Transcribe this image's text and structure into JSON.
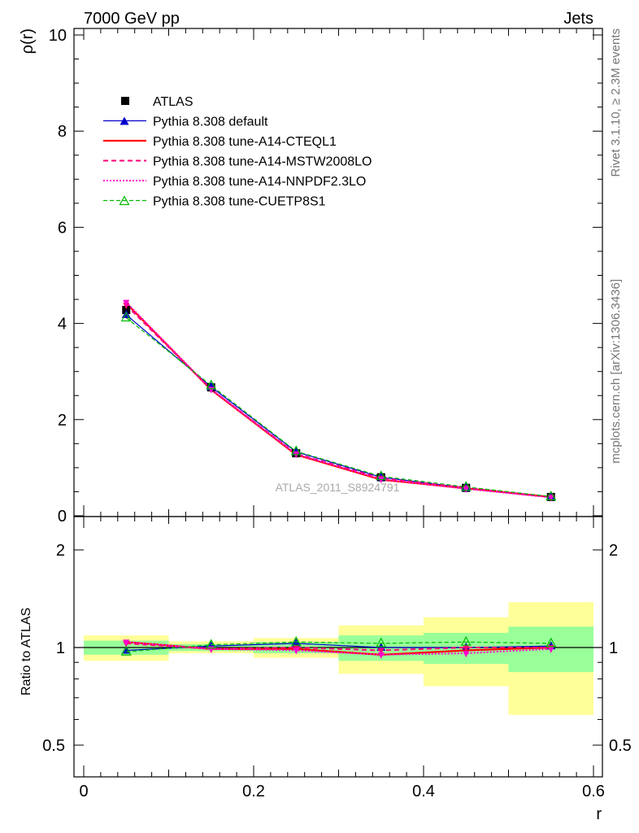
{
  "header": {
    "left": "7000 GeV pp",
    "right": "Jets"
  },
  "side_labels": {
    "rivet": "Rivet 3.1.10, ≥ 2.3M events",
    "mcplots": "mcplots.cern.ch [arXiv:1306.3436]"
  },
  "watermark": "ATLAS_2011_S8924791",
  "chart_data": [
    {
      "type": "line",
      "ylabel": "ρ(r)",
      "xlabel": "r",
      "xlim": [
        0,
        0.6
      ],
      "ylim": [
        0,
        10
      ],
      "yticks": [
        "0",
        "2",
        "4",
        "6",
        "8",
        "10"
      ],
      "grid": false,
      "legend_position": "top-left",
      "x": [
        0.05,
        0.15,
        0.25,
        0.35,
        0.45,
        0.55
      ],
      "series": [
        {
          "name": "ATLAS",
          "values": [
            4.28,
            2.67,
            1.3,
            0.8,
            0.58,
            0.39
          ],
          "color": "#000000"
        },
        {
          "name": "Pythia 8.308 default",
          "values": [
            4.18,
            2.68,
            1.33,
            0.8,
            0.58,
            0.39
          ],
          "color": "#0000cc"
        },
        {
          "name": "Pythia 8.308 tune-A14-CTEQL1",
          "values": [
            4.42,
            2.62,
            1.27,
            0.75,
            0.57,
            0.39
          ],
          "color": "#ff0000"
        },
        {
          "name": "Pythia 8.308 tune-A14-MSTW2008LO",
          "values": [
            4.38,
            2.63,
            1.29,
            0.78,
            0.58,
            0.39
          ],
          "color": "#ff0077"
        },
        {
          "name": "Pythia 8.308 tune-A14-NNPDF2.3LO",
          "values": [
            4.44,
            2.63,
            1.28,
            0.76,
            0.56,
            0.38
          ],
          "color": "#ff00cc"
        },
        {
          "name": "Pythia 8.308 tune-CUETP8S1",
          "values": [
            4.12,
            2.71,
            1.34,
            0.82,
            0.6,
            0.4
          ],
          "color": "#00bb00"
        }
      ]
    },
    {
      "type": "line",
      "ylabel": "Ratio to ATLAS",
      "xlabel": "r",
      "xlim": [
        0,
        0.6
      ],
      "ylim": [
        0.4,
        2.3
      ],
      "yticks": [
        "0.5",
        "1",
        "2"
      ],
      "xticks": [
        "0",
        "0.2",
        "0.4",
        "0.6"
      ],
      "grid": false,
      "bins": [
        [
          0.0,
          0.1
        ],
        [
          0.1,
          0.2
        ],
        [
          0.2,
          0.3
        ],
        [
          0.3,
          0.4
        ],
        [
          0.4,
          0.5
        ],
        [
          0.5,
          0.6
        ]
      ],
      "band_stat": [
        [
          0.95,
          1.05
        ],
        [
          0.975,
          1.025
        ],
        [
          0.96,
          1.04
        ],
        [
          0.91,
          1.09
        ],
        [
          0.89,
          1.11
        ],
        [
          0.84,
          1.16
        ]
      ],
      "band_total": [
        [
          0.91,
          1.09
        ],
        [
          0.96,
          1.045
        ],
        [
          0.93,
          1.07
        ],
        [
          0.83,
          1.17
        ],
        [
          0.76,
          1.24
        ],
        [
          0.62,
          1.38
        ]
      ],
      "x": [
        0.05,
        0.15,
        0.25,
        0.35,
        0.45,
        0.55
      ],
      "series": [
        {
          "name": "Pythia 8.308 default",
          "values": [
            0.98,
            1.01,
            1.03,
            1.0,
            1.0,
            1.01
          ]
        },
        {
          "name": "Pythia 8.308 tune-A14-CTEQL1",
          "values": [
            1.04,
            0.99,
            0.99,
            0.95,
            0.98,
            1.0
          ]
        },
        {
          "name": "Pythia 8.308 tune-A14-MSTW2008LO",
          "values": [
            1.03,
            0.99,
            1.0,
            0.98,
            1.0,
            1.0
          ]
        },
        {
          "name": "Pythia 8.308 tune-A14-NNPDF2.3LO",
          "values": [
            1.04,
            0.99,
            0.98,
            0.95,
            0.96,
            0.99
          ]
        },
        {
          "name": "Pythia 8.308 tune-CUETP8S1",
          "values": [
            0.97,
            1.02,
            1.04,
            1.03,
            1.04,
            1.03
          ]
        }
      ]
    }
  ]
}
